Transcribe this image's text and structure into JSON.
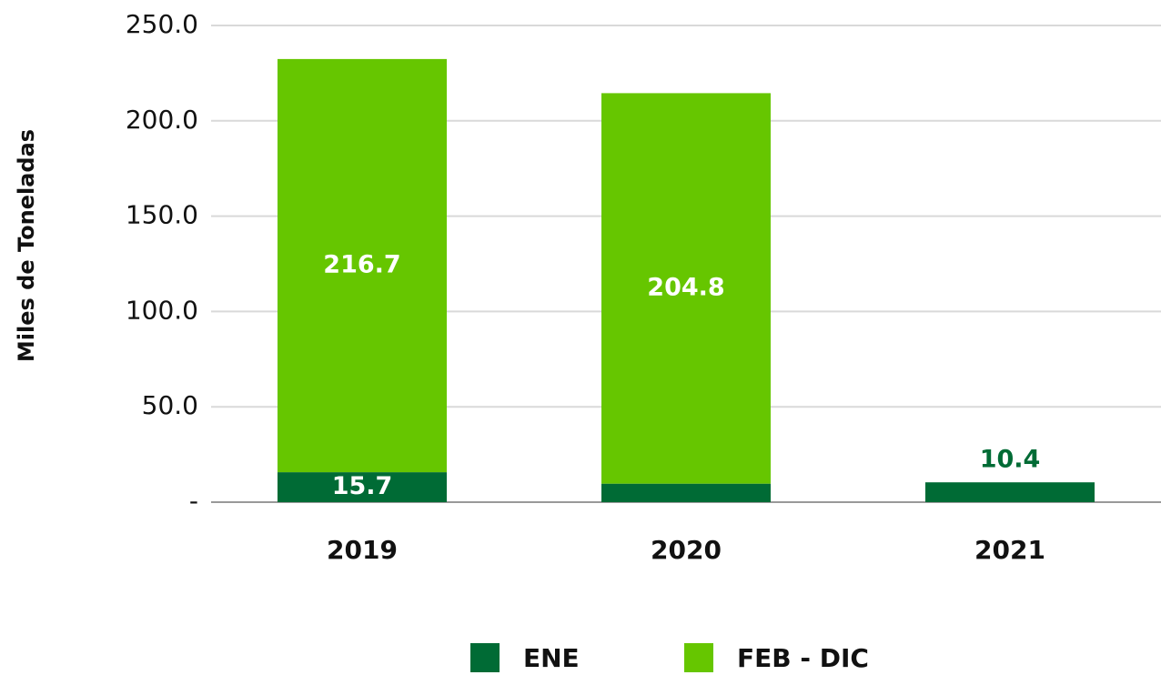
{
  "chart_data": {
    "type": "stacked_bar",
    "y_axis_label": "Miles de Toneladas",
    "categories": [
      "2019",
      "2020",
      "2021"
    ],
    "series": [
      {
        "name": "ENE",
        "color": "#006b35",
        "values": [
          15.7,
          9.7,
          10.4
        ]
      },
      {
        "name": "FEB - DIC",
        "color": "#66c600",
        "values": [
          216.7,
          204.8,
          null
        ]
      }
    ],
    "ylim": [
      0,
      250
    ],
    "yticks": [
      {
        "value": 0,
        "label": "-"
      },
      {
        "value": 50,
        "label": "50.0"
      },
      {
        "value": 100,
        "label": "100.0"
      },
      {
        "value": 150,
        "label": "150.0"
      },
      {
        "value": 200,
        "label": "200.0"
      },
      {
        "value": 250,
        "label": "250.0"
      }
    ],
    "grid": true,
    "legend": "bottom"
  }
}
